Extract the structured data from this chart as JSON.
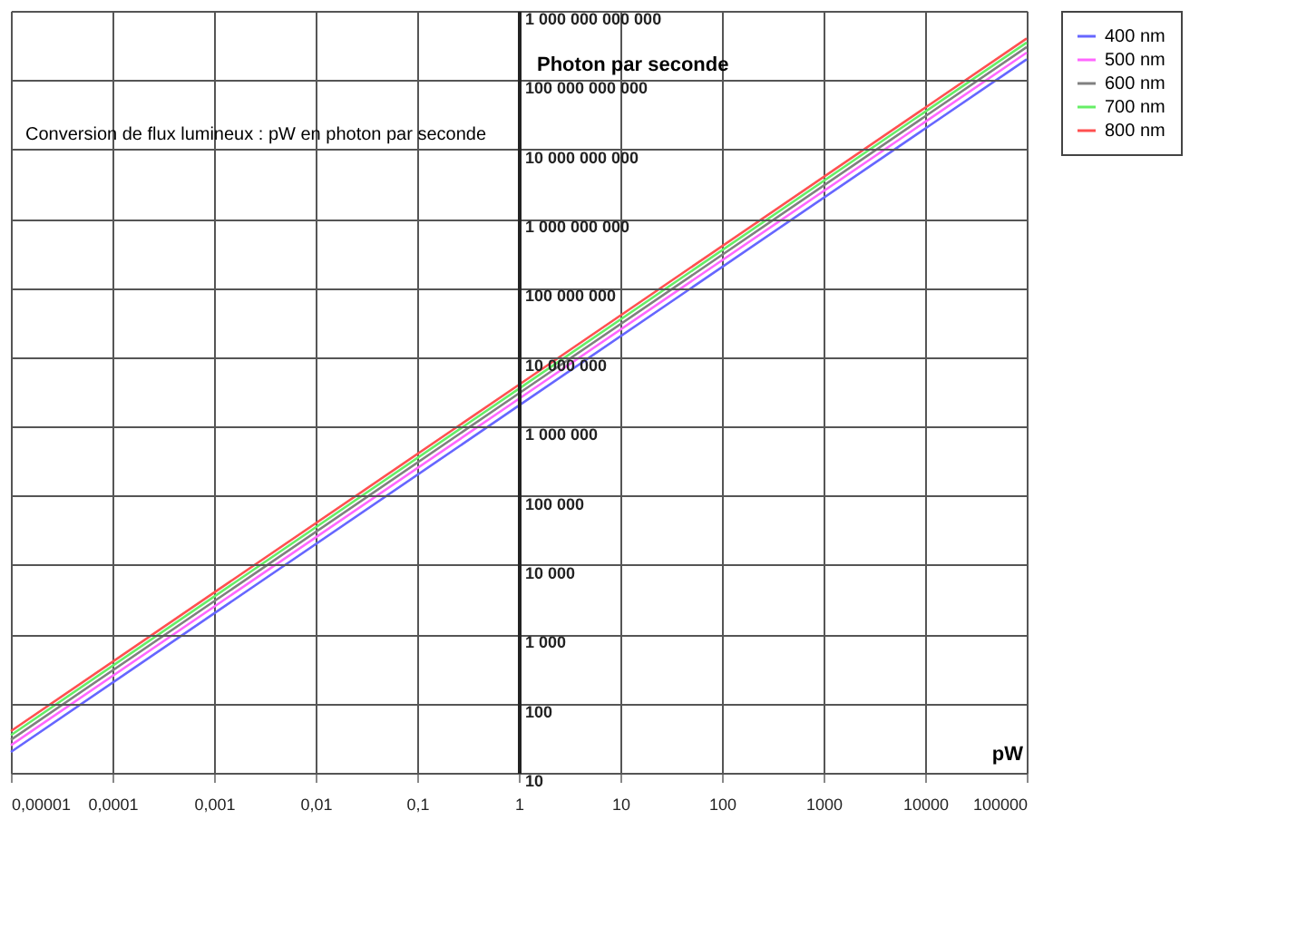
{
  "chart_data": {
    "type": "line",
    "annotations": [
      "Conversion de flux lumineux : pW en photon par seconde"
    ],
    "xlabel": "pW",
    "ylabel": "Photon par seconde",
    "x": [
      1e-05,
      1,
      100000
    ],
    "series": [
      {
        "name": "400 nm",
        "color": "#6666ff",
        "values": [
          20,
          2000000,
          200000000000
        ]
      },
      {
        "name": "500 nm",
        "color": "#ff66ff",
        "values": [
          25,
          2500000,
          250000000000
        ]
      },
      {
        "name": "600 nm",
        "color": "#808080",
        "values": [
          30,
          3000000,
          300000000000
        ]
      },
      {
        "name": "700 nm",
        "color": "#66ee66",
        "values": [
          35,
          3500000,
          350000000000
        ]
      },
      {
        "name": "800 nm",
        "color": "#ff5050",
        "values": [
          40,
          4000000,
          400000000000
        ]
      }
    ],
    "log": "xy",
    "grid": true,
    "legend": "right",
    "xlim": [
      1e-05,
      100000
    ],
    "xticks": [
      {
        "value": 1e-05,
        "label": "0,00001"
      },
      {
        "value": 0.0001,
        "label": "0,0001"
      },
      {
        "value": 0.001,
        "label": "0,001"
      },
      {
        "value": 0.01,
        "label": "0,01"
      },
      {
        "value": 0.1,
        "label": "0,1"
      },
      1,
      10,
      100,
      1000,
      10000,
      100000
    ],
    "ylim": [
      10,
      1000000000000
    ],
    "yticks": [
      {
        "value": 10,
        "label": "10"
      },
      {
        "value": 100,
        "label": "100"
      },
      {
        "value": 1000,
        "label": "1 000"
      },
      {
        "value": 10000,
        "label": "10 000"
      },
      {
        "value": 100000,
        "label": "100 000"
      },
      {
        "value": 1000000,
        "label": "1 000 000"
      },
      {
        "value": 10000000,
        "label": "10 000 000"
      },
      {
        "value": 100000000,
        "label": "100 000 000"
      },
      {
        "value": 1000000000,
        "label": "1 000 000 000"
      },
      {
        "value": 10000000000,
        "label": "10 000 000 000"
      },
      {
        "value": 100000000000,
        "label": "100 000 000 000"
      },
      {
        "value": 1000000000000,
        "label": "1 000 000 000 000"
      }
    ],
    "marker": "none",
    "line_style": "solid"
  }
}
